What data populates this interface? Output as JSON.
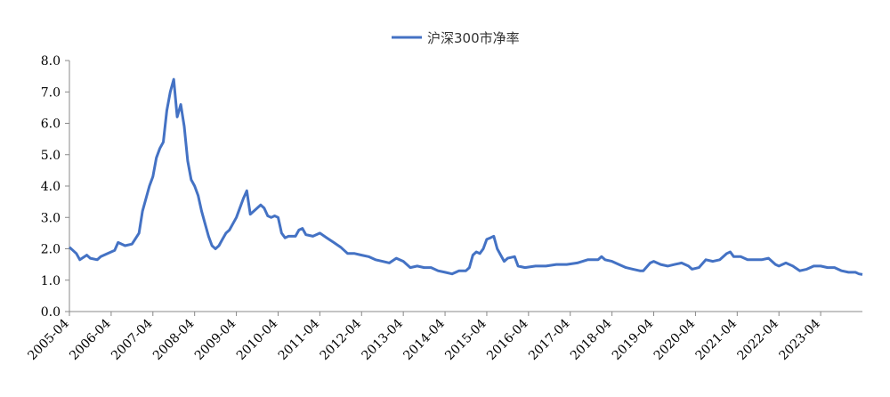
{
  "chart_data": {
    "type": "line",
    "title": "",
    "xlabel": "",
    "ylabel": "",
    "ylim": [
      0,
      8
    ],
    "y_ticks": [
      "0.0",
      "1.0",
      "2.0",
      "3.0",
      "4.0",
      "5.0",
      "6.0",
      "7.0",
      "8.0"
    ],
    "x_range": [
      "2005-04",
      "2024-04"
    ],
    "x_ticks": [
      "2005-04",
      "2006-04",
      "2007-04",
      "2008-04",
      "2009-04",
      "2010-04",
      "2011-04",
      "2012-04",
      "2013-04",
      "2014-04",
      "2015-04",
      "2016-04",
      "2017-04",
      "2018-04",
      "2019-04",
      "2020-04",
      "2021-04",
      "2022-04",
      "2023-04"
    ],
    "grid": false,
    "legend_position": "top-center",
    "series": [
      {
        "name": "沪深300市净率",
        "color": "#4472C4",
        "points": [
          [
            "2005-04",
            2.05
          ],
          [
            "2005-06",
            1.85
          ],
          [
            "2005-07",
            1.65
          ],
          [
            "2005-09",
            1.8
          ],
          [
            "2005-10",
            1.7
          ],
          [
            "2005-12",
            1.65
          ],
          [
            "2006-01",
            1.75
          ],
          [
            "2006-03",
            1.85
          ],
          [
            "2006-05",
            1.95
          ],
          [
            "2006-06",
            2.2
          ],
          [
            "2006-08",
            2.1
          ],
          [
            "2006-10",
            2.15
          ],
          [
            "2006-12",
            2.5
          ],
          [
            "2007-01",
            3.2
          ],
          [
            "2007-02",
            3.6
          ],
          [
            "2007-03",
            4.0
          ],
          [
            "2007-04",
            4.3
          ],
          [
            "2007-05",
            4.9
          ],
          [
            "2007-06",
            5.2
          ],
          [
            "2007-07",
            5.4
          ],
          [
            "2007-08",
            6.4
          ],
          [
            "2007-09",
            7.0
          ],
          [
            "2007-10",
            7.4
          ],
          [
            "2007-11",
            6.2
          ],
          [
            "2007-12",
            6.6
          ],
          [
            "2008-01",
            5.9
          ],
          [
            "2008-02",
            4.8
          ],
          [
            "2008-03",
            4.2
          ],
          [
            "2008-04",
            4.0
          ],
          [
            "2008-05",
            3.7
          ],
          [
            "2008-06",
            3.2
          ],
          [
            "2008-07",
            2.8
          ],
          [
            "2008-08",
            2.4
          ],
          [
            "2008-09",
            2.1
          ],
          [
            "2008-10",
            2.0
          ],
          [
            "2008-11",
            2.1
          ],
          [
            "2008-12",
            2.3
          ],
          [
            "2009-01",
            2.5
          ],
          [
            "2009-02",
            2.6
          ],
          [
            "2009-03",
            2.8
          ],
          [
            "2009-04",
            3.0
          ],
          [
            "2009-05",
            3.3
          ],
          [
            "2009-06",
            3.6
          ],
          [
            "2009-07",
            3.85
          ],
          [
            "2009-08",
            3.1
          ],
          [
            "2009-09",
            3.2
          ],
          [
            "2009-10",
            3.3
          ],
          [
            "2009-11",
            3.4
          ],
          [
            "2009-12",
            3.3
          ],
          [
            "2010-01",
            3.05
          ],
          [
            "2010-02",
            3.0
          ],
          [
            "2010-03",
            3.05
          ],
          [
            "2010-04",
            3.0
          ],
          [
            "2010-05",
            2.5
          ],
          [
            "2010-06",
            2.35
          ],
          [
            "2010-07",
            2.4
          ],
          [
            "2010-08",
            2.4
          ],
          [
            "2010-09",
            2.4
          ],
          [
            "2010-10",
            2.6
          ],
          [
            "2010-11",
            2.65
          ],
          [
            "2010-12",
            2.45
          ],
          [
            "2011-02",
            2.4
          ],
          [
            "2011-04",
            2.5
          ],
          [
            "2011-06",
            2.35
          ],
          [
            "2011-08",
            2.2
          ],
          [
            "2011-10",
            2.05
          ],
          [
            "2011-12",
            1.85
          ],
          [
            "2012-02",
            1.85
          ],
          [
            "2012-04",
            1.8
          ],
          [
            "2012-06",
            1.75
          ],
          [
            "2012-08",
            1.65
          ],
          [
            "2012-10",
            1.6
          ],
          [
            "2012-12",
            1.55
          ],
          [
            "2013-02",
            1.7
          ],
          [
            "2013-04",
            1.6
          ],
          [
            "2013-06",
            1.4
          ],
          [
            "2013-08",
            1.45
          ],
          [
            "2013-10",
            1.4
          ],
          [
            "2013-12",
            1.4
          ],
          [
            "2014-02",
            1.3
          ],
          [
            "2014-04",
            1.25
          ],
          [
            "2014-06",
            1.2
          ],
          [
            "2014-08",
            1.3
          ],
          [
            "2014-10",
            1.3
          ],
          [
            "2014-11",
            1.4
          ],
          [
            "2014-12",
            1.8
          ],
          [
            "2015-01",
            1.9
          ],
          [
            "2015-02",
            1.85
          ],
          [
            "2015-03",
            2.0
          ],
          [
            "2015-04",
            2.3
          ],
          [
            "2015-05",
            2.35
          ],
          [
            "2015-06",
            2.4
          ],
          [
            "2015-07",
            2.0
          ],
          [
            "2015-08",
            1.8
          ],
          [
            "2015-09",
            1.6
          ],
          [
            "2015-10",
            1.7
          ],
          [
            "2015-12",
            1.75
          ],
          [
            "2016-01",
            1.45
          ],
          [
            "2016-03",
            1.4
          ],
          [
            "2016-06",
            1.45
          ],
          [
            "2016-09",
            1.45
          ],
          [
            "2016-12",
            1.5
          ],
          [
            "2017-03",
            1.5
          ],
          [
            "2017-06",
            1.55
          ],
          [
            "2017-09",
            1.65
          ],
          [
            "2017-12",
            1.65
          ],
          [
            "2018-01",
            1.75
          ],
          [
            "2018-02",
            1.65
          ],
          [
            "2018-04",
            1.6
          ],
          [
            "2018-06",
            1.5
          ],
          [
            "2018-08",
            1.4
          ],
          [
            "2018-10",
            1.35
          ],
          [
            "2018-12",
            1.3
          ],
          [
            "2019-01",
            1.3
          ],
          [
            "2019-03",
            1.55
          ],
          [
            "2019-04",
            1.6
          ],
          [
            "2019-06",
            1.5
          ],
          [
            "2019-08",
            1.45
          ],
          [
            "2019-10",
            1.5
          ],
          [
            "2019-12",
            1.55
          ],
          [
            "2020-02",
            1.45
          ],
          [
            "2020-03",
            1.35
          ],
          [
            "2020-05",
            1.4
          ],
          [
            "2020-07",
            1.65
          ],
          [
            "2020-09",
            1.6
          ],
          [
            "2020-11",
            1.65
          ],
          [
            "2021-01",
            1.85
          ],
          [
            "2021-02",
            1.9
          ],
          [
            "2021-03",
            1.75
          ],
          [
            "2021-05",
            1.75
          ],
          [
            "2021-07",
            1.65
          ],
          [
            "2021-09",
            1.65
          ],
          [
            "2021-11",
            1.65
          ],
          [
            "2022-01",
            1.7
          ],
          [
            "2022-03",
            1.5
          ],
          [
            "2022-04",
            1.45
          ],
          [
            "2022-06",
            1.55
          ],
          [
            "2022-08",
            1.45
          ],
          [
            "2022-10",
            1.3
          ],
          [
            "2022-12",
            1.35
          ],
          [
            "2023-02",
            1.45
          ],
          [
            "2023-04",
            1.45
          ],
          [
            "2023-06",
            1.4
          ],
          [
            "2023-08",
            1.4
          ],
          [
            "2023-10",
            1.3
          ],
          [
            "2023-12",
            1.25
          ],
          [
            "2024-01",
            1.25
          ],
          [
            "2024-02",
            1.25
          ],
          [
            "2024-03",
            1.2
          ],
          [
            "2024-04",
            1.18
          ]
        ]
      }
    ]
  }
}
